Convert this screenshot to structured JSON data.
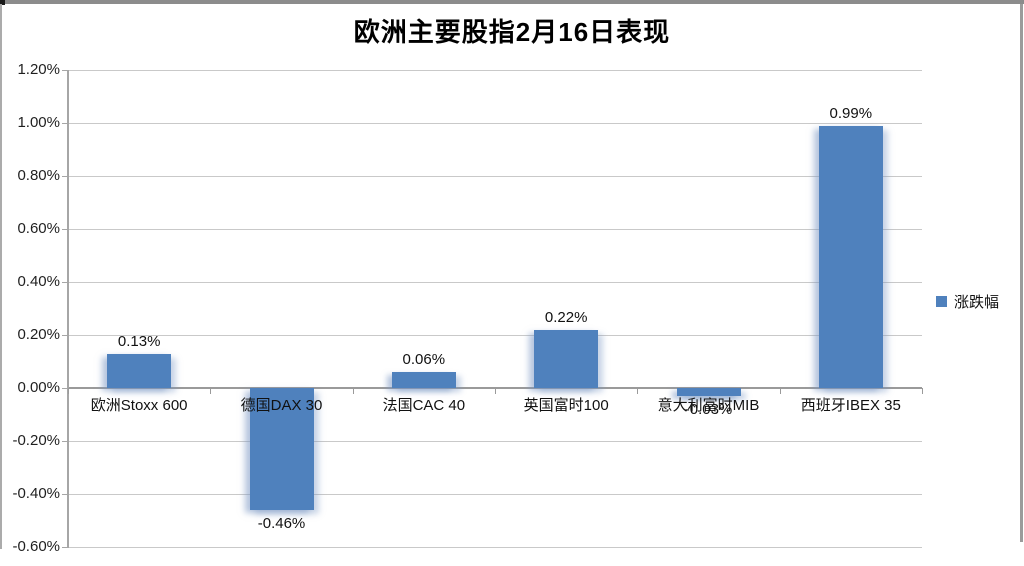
{
  "chart_data": {
    "type": "bar",
    "title": "欧洲主要股指2月16日表现",
    "categories": [
      "欧洲Stoxx 600",
      "德国DAX 30",
      "法国CAC 40",
      "英国富时100",
      "意大利富时MIB",
      "西班牙IBEX 35"
    ],
    "series": [
      {
        "name": "涨跌幅",
        "values": [
          0.13,
          -0.46,
          0.06,
          0.22,
          -0.03,
          0.99
        ]
      }
    ],
    "value_labels": [
      "0.13%",
      "-0.46%",
      "0.06%",
      "0.22%",
      "-0.03%",
      "0.99%"
    ],
    "y_tick_labels": [
      "1.20%",
      "1.00%",
      "0.80%",
      "0.60%",
      "0.40%",
      "0.20%",
      "0.00%",
      "-0.20%",
      "-0.40%",
      "-0.60%"
    ],
    "ylim": [
      -0.6,
      1.2
    ],
    "y_step": 0.2,
    "unit": "%",
    "grid": true,
    "legend": {
      "label": "涨跌幅",
      "position": "right"
    },
    "bar_color": "#4f81bd"
  }
}
